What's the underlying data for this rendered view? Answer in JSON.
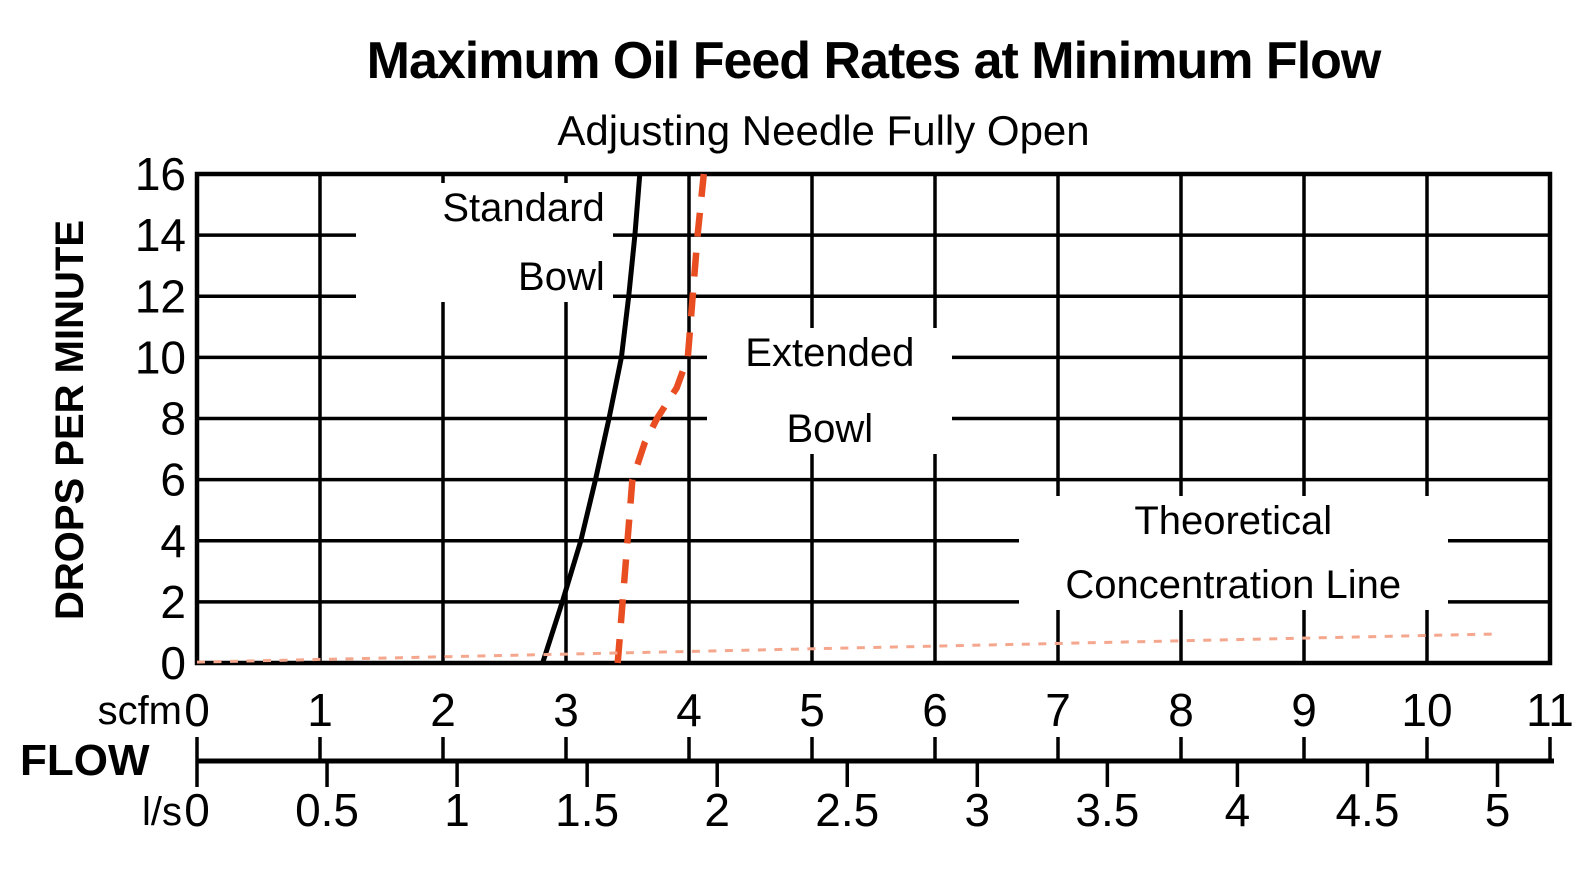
{
  "chart_data": {
    "type": "line",
    "title": "Maximum Oil Feed Rates at Minimum Flow",
    "subtitle": "Adjusting Needle Fully Open",
    "ylabel": "DROPS PER MINUTE",
    "xlabel": "FLOW",
    "grid": true,
    "legend_position": "inline-labels",
    "y_axis": {
      "ticks": [
        0,
        2,
        4,
        6,
        8,
        10,
        12,
        14,
        16
      ],
      "range": [
        0,
        16
      ]
    },
    "x_axis": {
      "primary_unit": "scfm",
      "primary_ticks": [
        0,
        1,
        2,
        3,
        4,
        5,
        6,
        7,
        8,
        9,
        10,
        11
      ],
      "primary_range": [
        0,
        11
      ],
      "secondary_unit": "l/s",
      "secondary_ticks": [
        0,
        0.5,
        1,
        1.5,
        2,
        2.5,
        3,
        3.5,
        4,
        4.5,
        5
      ],
      "secondary_range": [
        0,
        5.2
      ]
    },
    "series": [
      {
        "name": "Standard Bowl",
        "line_style": "solid",
        "color": "#000000",
        "points_scfm_drops": [
          [
            2.81,
            0
          ],
          [
            2.97,
            2
          ],
          [
            3.12,
            4
          ],
          [
            3.24,
            6
          ],
          [
            3.35,
            8
          ],
          [
            3.45,
            10
          ],
          [
            3.51,
            12
          ],
          [
            3.56,
            14
          ],
          [
            3.6,
            16
          ]
        ]
      },
      {
        "name": "Extended Bowl",
        "line_style": "dashed",
        "color": "#E94E22",
        "points_scfm_drops": [
          [
            3.42,
            0
          ],
          [
            3.46,
            2
          ],
          [
            3.5,
            4
          ],
          [
            3.54,
            6
          ],
          [
            3.64,
            7.2
          ],
          [
            3.74,
            8
          ],
          [
            3.9,
            9
          ],
          [
            3.99,
            10
          ],
          [
            4.03,
            12
          ],
          [
            4.07,
            14
          ],
          [
            4.12,
            16
          ]
        ]
      },
      {
        "name": "Theoretical Concentration Line",
        "line_style": "fine-dashed",
        "color": "#F5A78E",
        "points_scfm_drops": [
          [
            0,
            0.03
          ],
          [
            10.55,
            0.95
          ]
        ]
      }
    ],
    "annotations": [
      {
        "lines": [
          "Standard",
          "Bowl"
        ],
        "align": "right",
        "box_scfm": [
          1.29,
          3.38
        ],
        "box_drops": [
          15.7,
          11.8
        ]
      },
      {
        "lines": [
          "Extended",
          "Bowl"
        ],
        "align": "center",
        "box_scfm": [
          4.15,
          6.14
        ],
        "box_drops": [
          10.96,
          6.84
        ]
      },
      {
        "lines": [
          "Theoretical",
          "Concentration Line"
        ],
        "align": "center",
        "box_scfm": [
          6.68,
          10.17
        ],
        "box_drops": [
          5.46,
          1.73
        ]
      }
    ]
  }
}
